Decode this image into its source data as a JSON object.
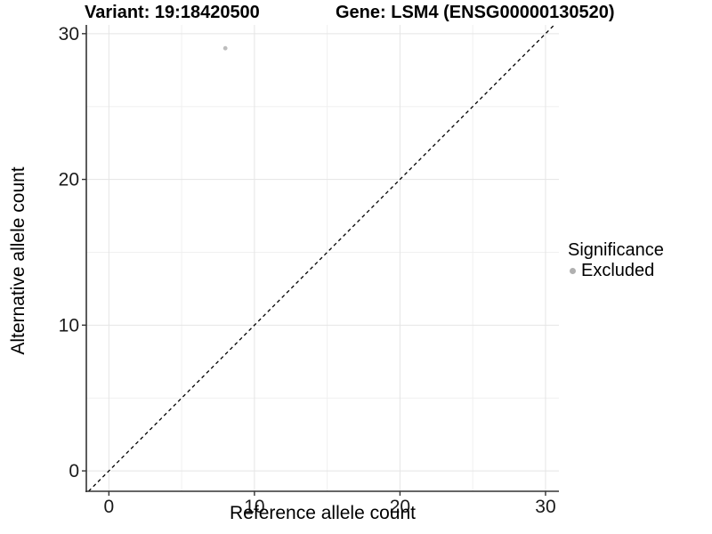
{
  "figure": {
    "title_variant": "Variant: 19:18420500",
    "title_gene": "Gene: LSM4 (ENSG00000130520)"
  },
  "chart_data": {
    "type": "scatter",
    "title": "Variant: 19:18420500    Gene: LSM4 (ENSG00000130520)",
    "xlabel": "Reference allele count",
    "ylabel": "Alternative allele count",
    "xlim": [
      -1.55,
      30.92
    ],
    "ylim": [
      -1.4,
      30.6
    ],
    "xticks": [
      0,
      10,
      20,
      30
    ],
    "yticks": [
      0,
      10,
      20,
      30
    ],
    "xticks_minor": [
      5,
      15,
      25
    ],
    "yticks_minor": [
      5,
      15,
      25
    ],
    "grid": "major and minor gridlines, white background",
    "identity_line": {
      "style": "dashed",
      "color": "#000000",
      "equation": "y = x",
      "from": -1.4,
      "to": 30.6
    },
    "series": [
      {
        "name": "Excluded",
        "color": "#bdbdbd",
        "points": [
          {
            "x": 8,
            "y": 29
          }
        ]
      }
    ],
    "legend": {
      "title": "Significance",
      "position": "right",
      "entries": [
        {
          "label": "Excluded",
          "color": "#b0b0b0"
        }
      ]
    }
  },
  "colors": {
    "background": "#ffffff",
    "grid_major": "#e5e5e5",
    "grid_minor": "#f0f0f0",
    "axis_line": "#333333",
    "tick_mark": "#333333",
    "tick_text": "#1a1a1a",
    "identity_line": "#000000"
  }
}
